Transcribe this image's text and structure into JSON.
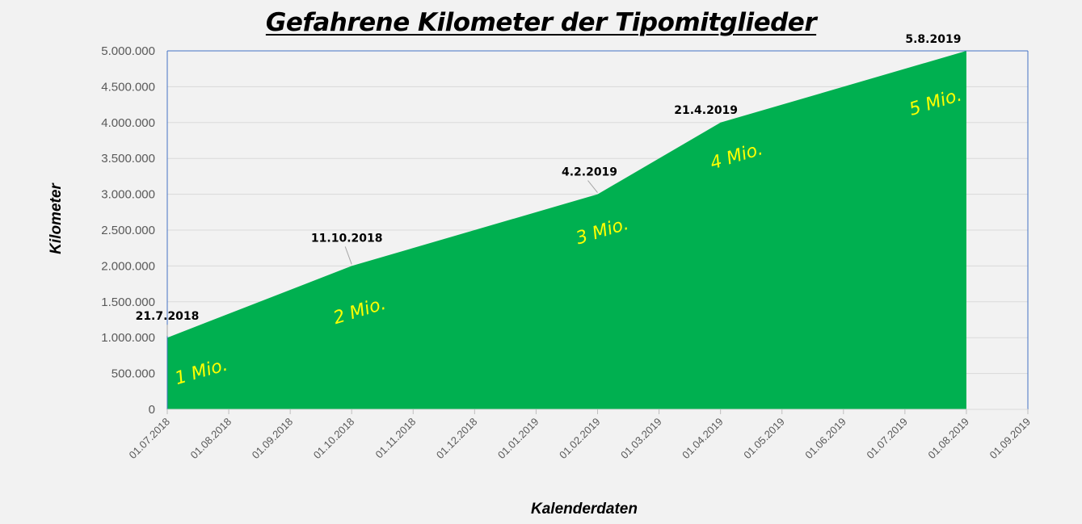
{
  "chart_data": {
    "type": "area",
    "title": "Gefahrene Kilometer der Tipomitglieder",
    "xlabel": "Kalenderdaten",
    "ylabel": "Kilometer",
    "categories": [
      "01.07.2018",
      "01.08.2018",
      "01.09.2018",
      "01.10.2018",
      "01.11.2018",
      "01.12.2018",
      "01.01.2019",
      "01.02.2019",
      "01.03.2019",
      "01.04.2019",
      "01.05.2019",
      "01.06.2019",
      "01.07.2019",
      "01.08.2019",
      "01.09.2019"
    ],
    "yticks": [
      "0",
      "500.000",
      "1.000.000",
      "1.500.000",
      "2.000.000",
      "2.500.000",
      "3.000.000",
      "3.500.000",
      "4.000.000",
      "4.500.000",
      "5.000.000"
    ],
    "ylim": [
      0,
      5000000
    ],
    "grid": true,
    "fill_color": "#00b050",
    "points": [
      {
        "x": "01.07.2018",
        "y": 1000000,
        "label": "21.7.2018",
        "annotation": "1 Mio."
      },
      {
        "x": "01.10.2018",
        "y": 2000000,
        "label": "11.10.2018",
        "annotation": "2 Mio."
      },
      {
        "x": "01.02.2019",
        "y": 3000000,
        "label": "4.2.2019",
        "annotation": "3 Mio."
      },
      {
        "x": "01.04.2019",
        "y": 4000000,
        "label": "21.4.2019",
        "annotation": "4 Mio."
      },
      {
        "x": "01.08.2019",
        "y": 5000000,
        "label": "5.8.2019",
        "annotation": "5 Mio."
      }
    ],
    "annotation_color": "#ffff00"
  }
}
